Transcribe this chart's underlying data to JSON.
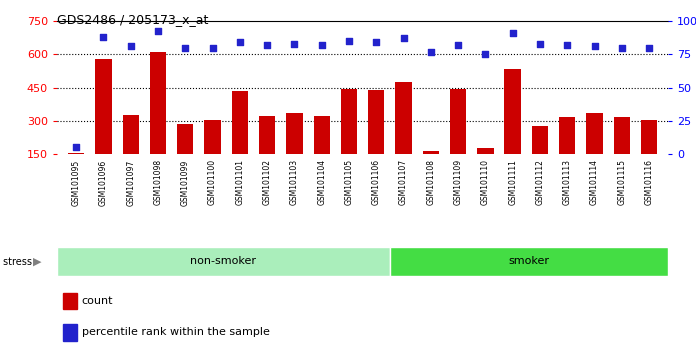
{
  "title": "GDS2486 / 205173_x_at",
  "samples": [
    "GSM101095",
    "GSM101096",
    "GSM101097",
    "GSM101098",
    "GSM101099",
    "GSM101100",
    "GSM101101",
    "GSM101102",
    "GSM101103",
    "GSM101104",
    "GSM101105",
    "GSM101106",
    "GSM101107",
    "GSM101108",
    "GSM101109",
    "GSM101110",
    "GSM101111",
    "GSM101112",
    "GSM101113",
    "GSM101114",
    "GSM101115",
    "GSM101116"
  ],
  "counts": [
    155,
    580,
    325,
    610,
    285,
    305,
    435,
    320,
    335,
    320,
    445,
    440,
    475,
    165,
    445,
    175,
    535,
    275,
    315,
    335,
    315,
    305
  ],
  "percentile_ranks": [
    5,
    88,
    81,
    93,
    80,
    80,
    84,
    82,
    83,
    82,
    85,
    84,
    87,
    77,
    82,
    75,
    91,
    83,
    82,
    81,
    80,
    80
  ],
  "non_smoker_count": 12,
  "smoker_count": 10,
  "ylim_left": [
    150,
    750
  ],
  "ylim_right": [
    0,
    100
  ],
  "yticks_left": [
    150,
    300,
    450,
    600,
    750
  ],
  "yticks_right": [
    0,
    25,
    50,
    75,
    100
  ],
  "bar_color": "#cc0000",
  "dot_color": "#2222cc",
  "non_smoker_color": "#aaeebb",
  "smoker_color": "#44dd44",
  "bar_width": 0.6,
  "grid_lines": [
    300,
    450,
    600
  ],
  "plot_bg": "#ffffff",
  "tick_bg": "#cccccc"
}
